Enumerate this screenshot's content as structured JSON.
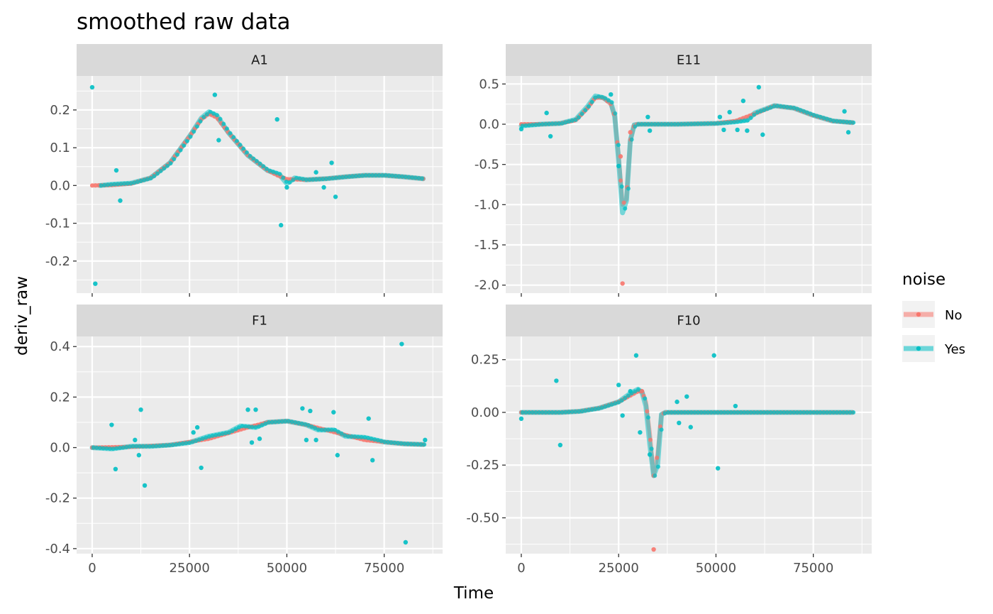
{
  "chart_data": {
    "type": "line",
    "title": "smoothed raw data",
    "xlabel": "Time",
    "ylabel": "deriv_raw",
    "grid": true,
    "legend": {
      "title": "noise",
      "placement": "right",
      "entries": [
        {
          "label": "No",
          "color": "#F8766D"
        },
        {
          "label": "Yes",
          "color": "#00BFC4"
        }
      ]
    },
    "facets": [
      {
        "name": "A1",
        "xlim": [
          -4000,
          90000
        ],
        "ylim": [
          -0.285,
          0.29
        ],
        "xticks": [
          0,
          25000,
          50000,
          75000
        ],
        "yticks": [
          -0.2,
          -0.1,
          0.0,
          0.1,
          0.2
        ],
        "ytick_labels": [
          "-0.2",
          "-0.1",
          "0.0",
          "0.1",
          "0.2"
        ],
        "smooth_no": [
          [
            0,
            0
          ],
          [
            5000,
            0.001
          ],
          [
            10000,
            0.005
          ],
          [
            15000,
            0.02
          ],
          [
            20000,
            0.06
          ],
          [
            25000,
            0.13
          ],
          [
            28000,
            0.175
          ],
          [
            30000,
            0.19
          ],
          [
            32000,
            0.18
          ],
          [
            35000,
            0.14
          ],
          [
            40000,
            0.08
          ],
          [
            45000,
            0.04
          ],
          [
            48000,
            0.025
          ],
          [
            50000,
            0.017
          ],
          [
            55000,
            0.015
          ],
          [
            60000,
            0.018
          ],
          [
            65000,
            0.023
          ],
          [
            70000,
            0.027
          ],
          [
            75000,
            0.027
          ],
          [
            80000,
            0.023
          ],
          [
            85000,
            0.018
          ]
        ],
        "smooth_yes": [
          [
            2000,
            0
          ],
          [
            5000,
            0.003
          ],
          [
            10000,
            0.006
          ],
          [
            15000,
            0.02
          ],
          [
            20000,
            0.06
          ],
          [
            25000,
            0.13
          ],
          [
            28000,
            0.178
          ],
          [
            30000,
            0.195
          ],
          [
            32000,
            0.185
          ],
          [
            35000,
            0.14
          ],
          [
            40000,
            0.08
          ],
          [
            45000,
            0.04
          ],
          [
            48000,
            0.03
          ],
          [
            50000,
            0.005
          ],
          [
            52000,
            0.02
          ],
          [
            55000,
            0.015
          ],
          [
            60000,
            0.018
          ],
          [
            65000,
            0.023
          ],
          [
            70000,
            0.027
          ],
          [
            75000,
            0.027
          ],
          [
            80000,
            0.023
          ],
          [
            85000,
            0.018
          ]
        ],
        "outliers_yes": [
          [
            0,
            0.26
          ],
          [
            800,
            -0.26
          ],
          [
            6200,
            0.04
          ],
          [
            7200,
            -0.04
          ],
          [
            31500,
            0.24
          ],
          [
            32500,
            0.12
          ],
          [
            47500,
            0.175
          ],
          [
            48500,
            -0.105
          ],
          [
            50000,
            -0.005
          ],
          [
            57500,
            0.035
          ],
          [
            59500,
            -0.005
          ],
          [
            61500,
            0.06
          ],
          [
            62500,
            -0.03
          ]
        ],
        "outliers_no": []
      },
      {
        "name": "E11",
        "xlim": [
          -4000,
          90000
        ],
        "ylim": [
          -2.1,
          0.6
        ],
        "xticks": [
          0,
          25000,
          50000,
          75000
        ],
        "yticks": [
          -2.0,
          -1.5,
          -1.0,
          -0.5,
          0.0,
          0.5
        ],
        "ytick_labels": [
          "-2.0",
          "-1.5",
          "-1.0",
          "-0.5",
          "0.0",
          "0.5"
        ],
        "smooth_no": [
          [
            0,
            0
          ],
          [
            5000,
            0
          ],
          [
            10000,
            0.01
          ],
          [
            14000,
            0.05
          ],
          [
            17000,
            0.2
          ],
          [
            19000,
            0.33
          ],
          [
            21000,
            0.33
          ],
          [
            23000,
            0.25
          ],
          [
            24000,
            0.1
          ],
          [
            25000,
            -0.4
          ],
          [
            26000,
            -1.0
          ],
          [
            27000,
            -0.93
          ],
          [
            28000,
            -0.2
          ],
          [
            29000,
            -0.01
          ],
          [
            30000,
            0
          ],
          [
            40000,
            0
          ],
          [
            50000,
            0.01
          ],
          [
            55000,
            0.04
          ],
          [
            60000,
            0.13
          ],
          [
            65000,
            0.23
          ],
          [
            70000,
            0.2
          ],
          [
            75000,
            0.11
          ],
          [
            80000,
            0.04
          ],
          [
            85000,
            0.02
          ]
        ],
        "smooth_yes": [
          [
            0,
            -0.02
          ],
          [
            5000,
            0
          ],
          [
            10000,
            0.01
          ],
          [
            14000,
            0.06
          ],
          [
            17000,
            0.22
          ],
          [
            19000,
            0.35
          ],
          [
            21000,
            0.33
          ],
          [
            23000,
            0.27
          ],
          [
            24000,
            0.1
          ],
          [
            25000,
            -0.45
          ],
          [
            26000,
            -1.1
          ],
          [
            27000,
            -0.95
          ],
          [
            28000,
            -0.2
          ],
          [
            29000,
            -0.01
          ],
          [
            30000,
            0
          ],
          [
            40000,
            0
          ],
          [
            50000,
            0.01
          ],
          [
            55000,
            0.03
          ],
          [
            58000,
            0.05
          ],
          [
            60000,
            0.14
          ],
          [
            65000,
            0.23
          ],
          [
            70000,
            0.2
          ],
          [
            75000,
            0.11
          ],
          [
            80000,
            0.04
          ],
          [
            85000,
            0.02
          ]
        ],
        "outliers_yes": [
          [
            0,
            -0.06
          ],
          [
            6500,
            0.14
          ],
          [
            7500,
            -0.15
          ],
          [
            23000,
            0.37
          ],
          [
            25000,
            -0.52
          ],
          [
            32500,
            0.09
          ],
          [
            33000,
            -0.08
          ],
          [
            51000,
            0.09
          ],
          [
            52000,
            -0.07
          ],
          [
            53500,
            0.15
          ],
          [
            55500,
            -0.07
          ],
          [
            57000,
            0.29
          ],
          [
            58000,
            -0.08
          ],
          [
            61000,
            0.46
          ],
          [
            62000,
            -0.13
          ],
          [
            83000,
            0.16
          ],
          [
            84000,
            -0.1
          ]
        ],
        "outliers_no": [
          [
            26000,
            -1.98
          ],
          [
            25500,
            -0.4
          ],
          [
            28000,
            -0.1
          ]
        ]
      },
      {
        "name": "F1",
        "xlim": [
          -4000,
          90000
        ],
        "ylim": [
          -0.42,
          0.44
        ],
        "xticks": [
          0,
          25000,
          50000,
          75000
        ],
        "yticks": [
          -0.4,
          -0.2,
          0.0,
          0.2,
          0.4
        ],
        "ytick_labels": [
          "-0.4",
          "-0.2",
          "0.0",
          "0.2",
          "0.4"
        ],
        "smooth_no": [
          [
            0,
            0
          ],
          [
            10000,
            0.003
          ],
          [
            20000,
            0.01
          ],
          [
            30000,
            0.035
          ],
          [
            40000,
            0.08
          ],
          [
            45000,
            0.1
          ],
          [
            50000,
            0.105
          ],
          [
            55000,
            0.09
          ],
          [
            60000,
            0.07
          ],
          [
            65000,
            0.05
          ],
          [
            70000,
            0.03
          ],
          [
            75000,
            0.022
          ],
          [
            80000,
            0.015
          ],
          [
            85000,
            0.012
          ]
        ],
        "smooth_yes": [
          [
            0,
            0
          ],
          [
            5000,
            -0.005
          ],
          [
            10000,
            0.005
          ],
          [
            15000,
            0.005
          ],
          [
            20000,
            0.01
          ],
          [
            25000,
            0.02
          ],
          [
            30000,
            0.045
          ],
          [
            35000,
            0.06
          ],
          [
            38000,
            0.085
          ],
          [
            42000,
            0.08
          ],
          [
            45000,
            0.1
          ],
          [
            50000,
            0.105
          ],
          [
            55000,
            0.09
          ],
          [
            58000,
            0.07
          ],
          [
            62000,
            0.07
          ],
          [
            65000,
            0.045
          ],
          [
            70000,
            0.04
          ],
          [
            75000,
            0.022
          ],
          [
            80000,
            0.015
          ],
          [
            85000,
            0.012
          ]
        ],
        "outliers_yes": [
          [
            5000,
            0.09
          ],
          [
            6000,
            -0.085
          ],
          [
            11000,
            0.03
          ],
          [
            12000,
            -0.03
          ],
          [
            12500,
            0.15
          ],
          [
            13500,
            -0.15
          ],
          [
            26000,
            0.06
          ],
          [
            27000,
            0.08
          ],
          [
            28000,
            -0.08
          ],
          [
            40000,
            0.15
          ],
          [
            41000,
            0.02
          ],
          [
            42000,
            0.15
          ],
          [
            43000,
            0.035
          ],
          [
            54000,
            0.155
          ],
          [
            55000,
            0.03
          ],
          [
            56000,
            0.145
          ],
          [
            57500,
            0.03
          ],
          [
            62000,
            0.14
          ],
          [
            63000,
            -0.03
          ],
          [
            71000,
            0.115
          ],
          [
            72000,
            -0.05
          ],
          [
            79500,
            0.41
          ],
          [
            80500,
            -0.375
          ],
          [
            85500,
            0.03
          ]
        ],
        "outliers_no": []
      },
      {
        "name": "F10",
        "xlim": [
          -4000,
          90000
        ],
        "ylim": [
          -0.67,
          0.36
        ],
        "xticks": [
          0,
          25000,
          50000,
          75000
        ],
        "yticks": [
          -0.5,
          -0.25,
          0.0,
          0.25
        ],
        "ytick_labels": [
          "-0.50",
          "-0.25",
          "0.00",
          "0.25"
        ],
        "smooth_no": [
          [
            0,
            0
          ],
          [
            10000,
            0
          ],
          [
            15000,
            0.005
          ],
          [
            20000,
            0.02
          ],
          [
            25000,
            0.05
          ],
          [
            28000,
            0.08
          ],
          [
            30000,
            0.1
          ],
          [
            31000,
            0.1
          ],
          [
            32000,
            0.05
          ],
          [
            33000,
            -0.1
          ],
          [
            34000,
            -0.3
          ],
          [
            35000,
            -0.2
          ],
          [
            36000,
            -0.01
          ],
          [
            37000,
            0
          ],
          [
            50000,
            0
          ],
          [
            85000,
            0
          ]
        ],
        "smooth_yes": [
          [
            0,
            0
          ],
          [
            10000,
            0
          ],
          [
            15000,
            0.005
          ],
          [
            20000,
            0.02
          ],
          [
            25000,
            0.05
          ],
          [
            28000,
            0.09
          ],
          [
            30000,
            0.11
          ],
          [
            31000,
            0.095
          ],
          [
            32000,
            0.03
          ],
          [
            33000,
            -0.15
          ],
          [
            34000,
            -0.3
          ],
          [
            35000,
            -0.25
          ],
          [
            36000,
            -0.01
          ],
          [
            37000,
            0
          ],
          [
            50000,
            0
          ],
          [
            85000,
            0
          ]
        ],
        "outliers_yes": [
          [
            0,
            -0.03
          ],
          [
            9000,
            0.15
          ],
          [
            10000,
            -0.155
          ],
          [
            25000,
            0.13
          ],
          [
            26000,
            -0.015
          ],
          [
            28000,
            0.1
          ],
          [
            29500,
            0.27
          ],
          [
            30500,
            -0.095
          ],
          [
            40000,
            0.05
          ],
          [
            40500,
            -0.05
          ],
          [
            42500,
            0.075
          ],
          [
            43500,
            -0.07
          ],
          [
            49500,
            0.27
          ],
          [
            50500,
            -0.265
          ],
          [
            55000,
            0.03
          ],
          [
            33000,
            -0.2
          ]
        ],
        "outliers_no": [
          [
            34000,
            -0.65
          ],
          [
            31000,
            0.1
          ]
        ]
      }
    ]
  }
}
